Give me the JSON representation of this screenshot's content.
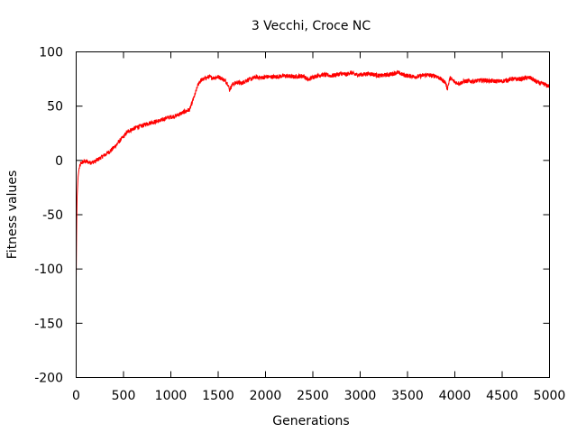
{
  "chart_data": {
    "type": "line",
    "title": "3 Vecchi, Croce NC",
    "xlabel": "Generations",
    "ylabel": "Fitness values",
    "xlim": [
      0,
      5000
    ],
    "ylim": [
      -200,
      100
    ],
    "xticks": [
      0,
      500,
      1000,
      1500,
      2000,
      2500,
      3000,
      3500,
      4000,
      4500,
      5000
    ],
    "yticks": [
      -200,
      -150,
      -100,
      -50,
      0,
      50,
      100
    ],
    "grid": false,
    "legend": "none",
    "series": [
      {
        "color": "#ff0000",
        "x": [
          0,
          5,
          10,
          20,
          30,
          40,
          50,
          60,
          80,
          100,
          150,
          200,
          250,
          300,
          350,
          400,
          450,
          500,
          550,
          600,
          650,
          700,
          750,
          800,
          850,
          900,
          950,
          1000,
          1050,
          1100,
          1150,
          1200,
          1220,
          1240,
          1260,
          1280,
          1300,
          1320,
          1350,
          1400,
          1450,
          1500,
          1550,
          1600,
          1620,
          1650,
          1700,
          1750,
          1800,
          1850,
          1900,
          1950,
          2000,
          2100,
          2200,
          2300,
          2400,
          2450,
          2500,
          2550,
          2600,
          2700,
          2800,
          2850,
          2900,
          2950,
          3000,
          3100,
          3200,
          3300,
          3350,
          3400,
          3450,
          3500,
          3600,
          3700,
          3750,
          3800,
          3850,
          3900,
          3920,
          3950,
          4000,
          4050,
          4100,
          4200,
          4300,
          4400,
          4500,
          4600,
          4700,
          4750,
          4800,
          4850,
          4900,
          4950,
          5000
        ],
        "y": [
          -108,
          -60,
          -33,
          -15,
          -8,
          -5,
          -3,
          -2,
          -1,
          -1,
          -2,
          -1,
          2,
          5,
          8,
          12,
          17,
          22,
          27,
          29,
          31,
          32,
          34,
          35,
          36,
          37,
          39,
          40,
          41,
          43,
          45,
          47,
          52,
          57,
          62,
          68,
          72,
          74,
          75,
          77,
          76,
          77,
          75,
          71,
          65,
          70,
          72,
          71,
          74,
          75,
          77,
          76,
          77,
          77,
          78,
          77,
          78,
          74,
          77,
          78,
          79,
          78,
          80,
          79,
          81,
          79,
          79,
          80,
          78,
          79,
          80,
          81,
          79,
          78,
          77,
          79,
          78,
          78,
          75,
          72,
          66,
          76,
          72,
          71,
          73,
          73,
          74,
          73,
          73,
          75,
          75,
          76,
          76,
          73,
          71,
          70,
          68
        ]
      }
    ]
  }
}
